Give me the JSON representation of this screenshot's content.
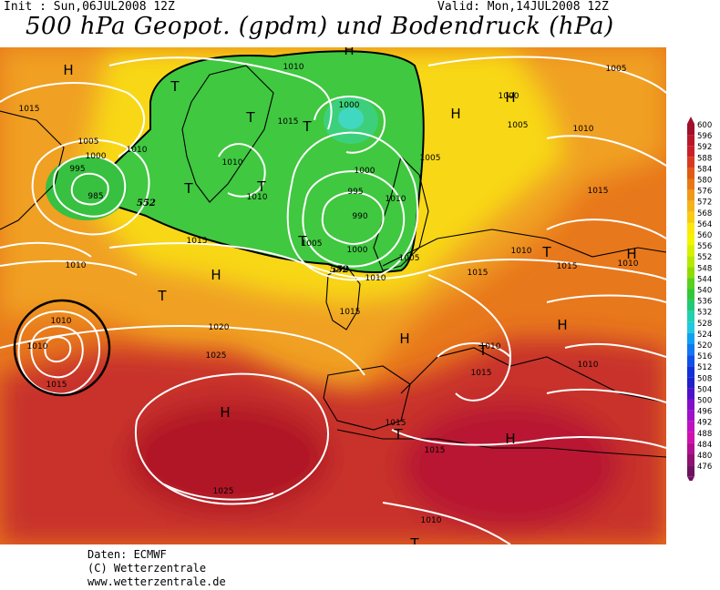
{
  "header": {
    "init": "Init : Sun,06JUL2008 12Z",
    "valid": "Valid: Mon,14JUL2008 12Z",
    "title": "500 hPa Geopot. (gpdm) und Bodendruck (hPa)"
  },
  "colorbar": {
    "values": [
      "600",
      "596",
      "592",
      "588",
      "584",
      "580",
      "576",
      "572",
      "568",
      "564",
      "560",
      "556",
      "552",
      "548",
      "544",
      "540",
      "536",
      "532",
      "528",
      "524",
      "520",
      "516",
      "512",
      "508",
      "504",
      "500",
      "496",
      "492",
      "488",
      "484",
      "480",
      "476"
    ],
    "colors": [
      "#a0102a",
      "#b8182a",
      "#c8202a",
      "#d83a1e",
      "#e05a14",
      "#e87814",
      "#f09818",
      "#f4b418",
      "#f8cc10",
      "#fce80c",
      "#f4f400",
      "#d8f000",
      "#b8e800",
      "#90dc00",
      "#58d020",
      "#30c838",
      "#20c878",
      "#20d0b0",
      "#20c8e0",
      "#10a0f0",
      "#1078f0",
      "#1050e8",
      "#1030d8",
      "#2020c8",
      "#5010c8",
      "#8010c8",
      "#a010c8",
      "#c010c0",
      "#d010b0",
      "#b01090",
      "#901070",
      "#701060"
    ]
  },
  "map": {
    "highs": [
      "H",
      "H",
      "H",
      "H",
      "H",
      "H",
      "H",
      "H",
      "H",
      "H"
    ],
    "lows": [
      "T",
      "T",
      "T",
      "T",
      "T",
      "T",
      "T",
      "T",
      "T",
      "T",
      "T"
    ],
    "isobars": [
      "1010",
      "1005",
      "1015",
      "1005",
      "1000",
      "995",
      "1010",
      "985",
      "1010",
      "1010",
      "1015",
      "1000",
      "1000",
      "995",
      "990",
      "1000",
      "1005",
      "1010",
      "1015",
      "1005",
      "1010",
      "1005",
      "1015",
      "1010",
      "1015",
      "1010",
      "1010",
      "1005",
      "1000",
      "1020",
      "1025",
      "1010",
      "1015",
      "1010",
      "1015",
      "1025",
      "1015",
      "1015",
      "1010",
      "1015",
      "1010",
      "1010",
      "1015",
      "1010"
    ],
    "contour_552": [
      "552",
      "552"
    ]
  },
  "footer": {
    "line1": "Daten: ECMWF",
    "line2": "(C) Wetterzentrale",
    "line3": "www.wetterzentrale.de"
  }
}
